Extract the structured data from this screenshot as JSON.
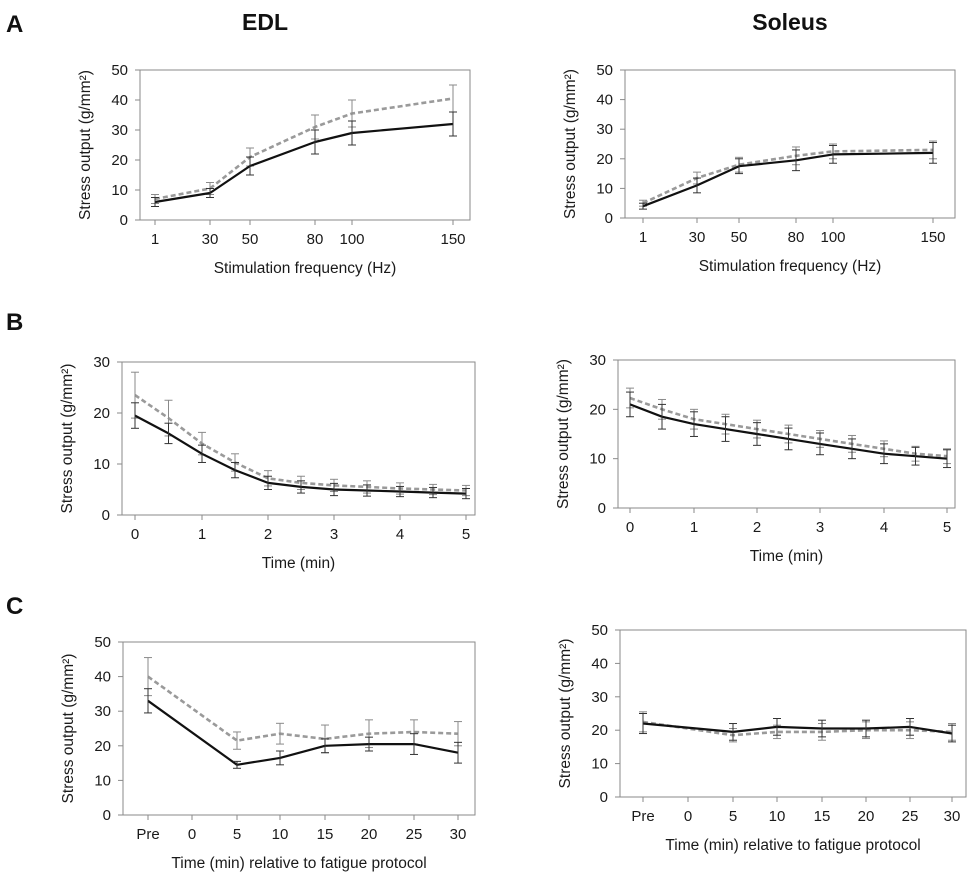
{
  "panel_letters": [
    "A",
    "B",
    "C"
  ],
  "column_titles": [
    "EDL",
    "Soleus"
  ],
  "chart_data": [
    {
      "id": "A-EDL",
      "panel": "A",
      "column": "EDL",
      "type": "line",
      "xlabel": "Stimulation frequency (Hz)",
      "ylabel": "Stress output (g/mm²)",
      "x_ticks": [
        "1",
        "30",
        "50",
        "80",
        "100",
        "150"
      ],
      "x_tick_values": [
        1,
        30,
        50,
        80,
        100,
        150
      ],
      "xlim": [
        1,
        150
      ],
      "ylim": [
        0,
        50
      ],
      "y_ticks": [
        0,
        10,
        20,
        30,
        40,
        50
      ],
      "series": [
        {
          "style": "solid",
          "color": "#111111",
          "x": [
            1,
            30,
            50,
            80,
            100,
            150
          ],
          "y": [
            6,
            9,
            18,
            26,
            29,
            32
          ],
          "err": [
            1.5,
            1.5,
            3,
            4,
            4,
            4
          ]
        },
        {
          "style": "dashed",
          "color": "#9a9a9a",
          "x": [
            1,
            30,
            50,
            80,
            100,
            150
          ],
          "y": [
            7,
            10.5,
            21,
            31,
            35.5,
            40.5
          ],
          "err": [
            1.5,
            2,
            3,
            4,
            4.5,
            4.5
          ]
        }
      ]
    },
    {
      "id": "A-Soleus",
      "panel": "A",
      "column": "Soleus",
      "type": "line",
      "xlabel": "Stimulation frequency (Hz)",
      "ylabel": "Stress output (g/mm²)",
      "x_ticks": [
        "1",
        "30",
        "50",
        "80",
        "100",
        "150"
      ],
      "x_tick_values": [
        1,
        30,
        50,
        80,
        100,
        150
      ],
      "xlim": [
        1,
        150
      ],
      "ylim": [
        0,
        50
      ],
      "y_ticks": [
        0,
        10,
        20,
        30,
        40,
        50
      ],
      "series": [
        {
          "style": "solid",
          "color": "#111111",
          "x": [
            1,
            30,
            50,
            80,
            100,
            150
          ],
          "y": [
            4,
            11,
            17.5,
            19.5,
            21.5,
            22
          ],
          "err": [
            1,
            2.5,
            2.5,
            3.5,
            3,
            3.5
          ]
        },
        {
          "style": "dashed",
          "color": "#9a9a9a",
          "x": [
            1,
            30,
            50,
            80,
            100,
            150
          ],
          "y": [
            5,
            13.5,
            18,
            21,
            22.5,
            23
          ],
          "err": [
            1,
            2,
            2.5,
            3,
            2.5,
            3
          ]
        }
      ]
    },
    {
      "id": "B-EDL",
      "panel": "B",
      "column": "EDL",
      "type": "line",
      "xlabel": "Time (min)",
      "ylabel": "Stress output (g/mm²)",
      "x_ticks": [
        "0",
        "1",
        "2",
        "3",
        "4",
        "5"
      ],
      "x_tick_values": [
        0,
        1,
        2,
        3,
        4,
        5
      ],
      "xlim": [
        0,
        5
      ],
      "ylim": [
        0,
        30
      ],
      "y_ticks": [
        0,
        10,
        20,
        30
      ],
      "series": [
        {
          "style": "solid",
          "color": "#111111",
          "x": [
            0,
            0.5,
            1,
            1.5,
            2,
            2.5,
            3,
            3.5,
            4,
            4.5,
            5
          ],
          "y": [
            19.5,
            16,
            12,
            8.8,
            6.3,
            5.5,
            5,
            4.8,
            4.6,
            4.4,
            4.2
          ],
          "err": [
            2.5,
            2,
            1.7,
            1.5,
            1.3,
            1.2,
            1.2,
            1.1,
            1,
            1,
            1
          ]
        },
        {
          "style": "dashed",
          "color": "#9a9a9a",
          "x": [
            0,
            0.5,
            1,
            1.5,
            2,
            2.5,
            3,
            3.5,
            4,
            4.5,
            5
          ],
          "y": [
            23.5,
            19,
            14,
            10.3,
            7.2,
            6.3,
            5.8,
            5.5,
            5.2,
            5,
            4.8
          ],
          "err": [
            4.5,
            3.5,
            2.2,
            1.7,
            1.5,
            1.3,
            1.2,
            1.2,
            1.1,
            1,
            1
          ]
        }
      ]
    },
    {
      "id": "B-Soleus",
      "panel": "B",
      "column": "Soleus",
      "type": "line",
      "xlabel": "Time (min)",
      "ylabel": "Stress output (g/mm²)",
      "x_ticks": [
        "0",
        "1",
        "2",
        "3",
        "4",
        "5"
      ],
      "x_tick_values": [
        0,
        1,
        2,
        3,
        4,
        5
      ],
      "xlim": [
        0,
        5
      ],
      "ylim": [
        0,
        30
      ],
      "y_ticks": [
        0,
        10,
        20,
        30
      ],
      "series": [
        {
          "style": "solid",
          "color": "#111111",
          "x": [
            0,
            0.5,
            1,
            1.5,
            2,
            2.5,
            3,
            3.5,
            4,
            4.5,
            5
          ],
          "y": [
            21,
            18.5,
            17,
            16,
            15,
            14,
            13,
            12,
            11,
            10.5,
            10
          ],
          "err": [
            2.5,
            2.5,
            2.5,
            2.5,
            2.3,
            2.2,
            2.2,
            2,
            2,
            1.8,
            1.8
          ]
        },
        {
          "style": "dashed",
          "color": "#9a9a9a",
          "x": [
            0,
            0.5,
            1,
            1.5,
            2,
            2.5,
            3,
            3.5,
            4,
            4.5,
            5
          ],
          "y": [
            22.3,
            20,
            18,
            17,
            16,
            15,
            14,
            13,
            12,
            11,
            10.5
          ],
          "err": [
            2,
            2,
            2,
            2,
            1.8,
            1.8,
            1.7,
            1.7,
            1.6,
            1.5,
            1.5
          ]
        }
      ]
    },
    {
      "id": "C-EDL",
      "panel": "C",
      "column": "EDL",
      "type": "line",
      "xlabel": "Time (min) relative to fatigue protocol",
      "ylabel": "Stress output (g/mm²)",
      "x_ticks": [
        "Pre",
        "0",
        "5",
        "10",
        "15",
        "20",
        "25",
        "30"
      ],
      "x_tick_values": [
        -5,
        0,
        5,
        10,
        15,
        20,
        25,
        30
      ],
      "xlim": [
        -5,
        30
      ],
      "ylim": [
        0,
        50
      ],
      "y_ticks": [
        0,
        10,
        20,
        30,
        40,
        50
      ],
      "series": [
        {
          "style": "solid",
          "color": "#111111",
          "x": [
            -5,
            5,
            10,
            15,
            20,
            25,
            30
          ],
          "y": [
            33,
            14.5,
            16.5,
            20,
            20.5,
            20.5,
            18
          ],
          "err": [
            3.5,
            1,
            2,
            2,
            2,
            3,
            3
          ]
        },
        {
          "style": "dashed",
          "color": "#9a9a9a",
          "x": [
            -5,
            5,
            10,
            15,
            20,
            25,
            30
          ],
          "y": [
            40,
            21.5,
            23.5,
            22,
            23.5,
            24,
            23.5
          ],
          "err": [
            5.5,
            2.5,
            3,
            4,
            4,
            3.5,
            3.5
          ]
        }
      ]
    },
    {
      "id": "C-Soleus",
      "panel": "C",
      "column": "Soleus",
      "type": "line",
      "xlabel": "Time (min) relative to fatigue protocol",
      "ylabel": "Stress output (g/mm²)",
      "x_ticks": [
        "Pre",
        "0",
        "5",
        "10",
        "15",
        "20",
        "25",
        "30"
      ],
      "x_tick_values": [
        -5,
        0,
        5,
        10,
        15,
        20,
        25,
        30
      ],
      "xlim": [
        -5,
        30
      ],
      "ylim": [
        0,
        50
      ],
      "y_ticks": [
        0,
        10,
        20,
        30,
        40,
        50
      ],
      "series": [
        {
          "style": "solid",
          "color": "#111111",
          "x": [
            -5,
            5,
            10,
            15,
            20,
            25,
            30
          ],
          "y": [
            22,
            19.5,
            21,
            20.5,
            20.5,
            21,
            19
          ],
          "err": [
            3,
            2.5,
            2.5,
            2.5,
            2.5,
            2.5,
            2.5
          ]
        },
        {
          "style": "dashed",
          "color": "#9a9a9a",
          "x": [
            -5,
            5,
            10,
            15,
            20,
            25,
            30
          ],
          "y": [
            22.5,
            18.5,
            19.5,
            19.5,
            20,
            20,
            19.5
          ],
          "err": [
            3,
            2,
            2,
            2.5,
            2.5,
            2.5,
            2.5
          ]
        }
      ]
    }
  ]
}
